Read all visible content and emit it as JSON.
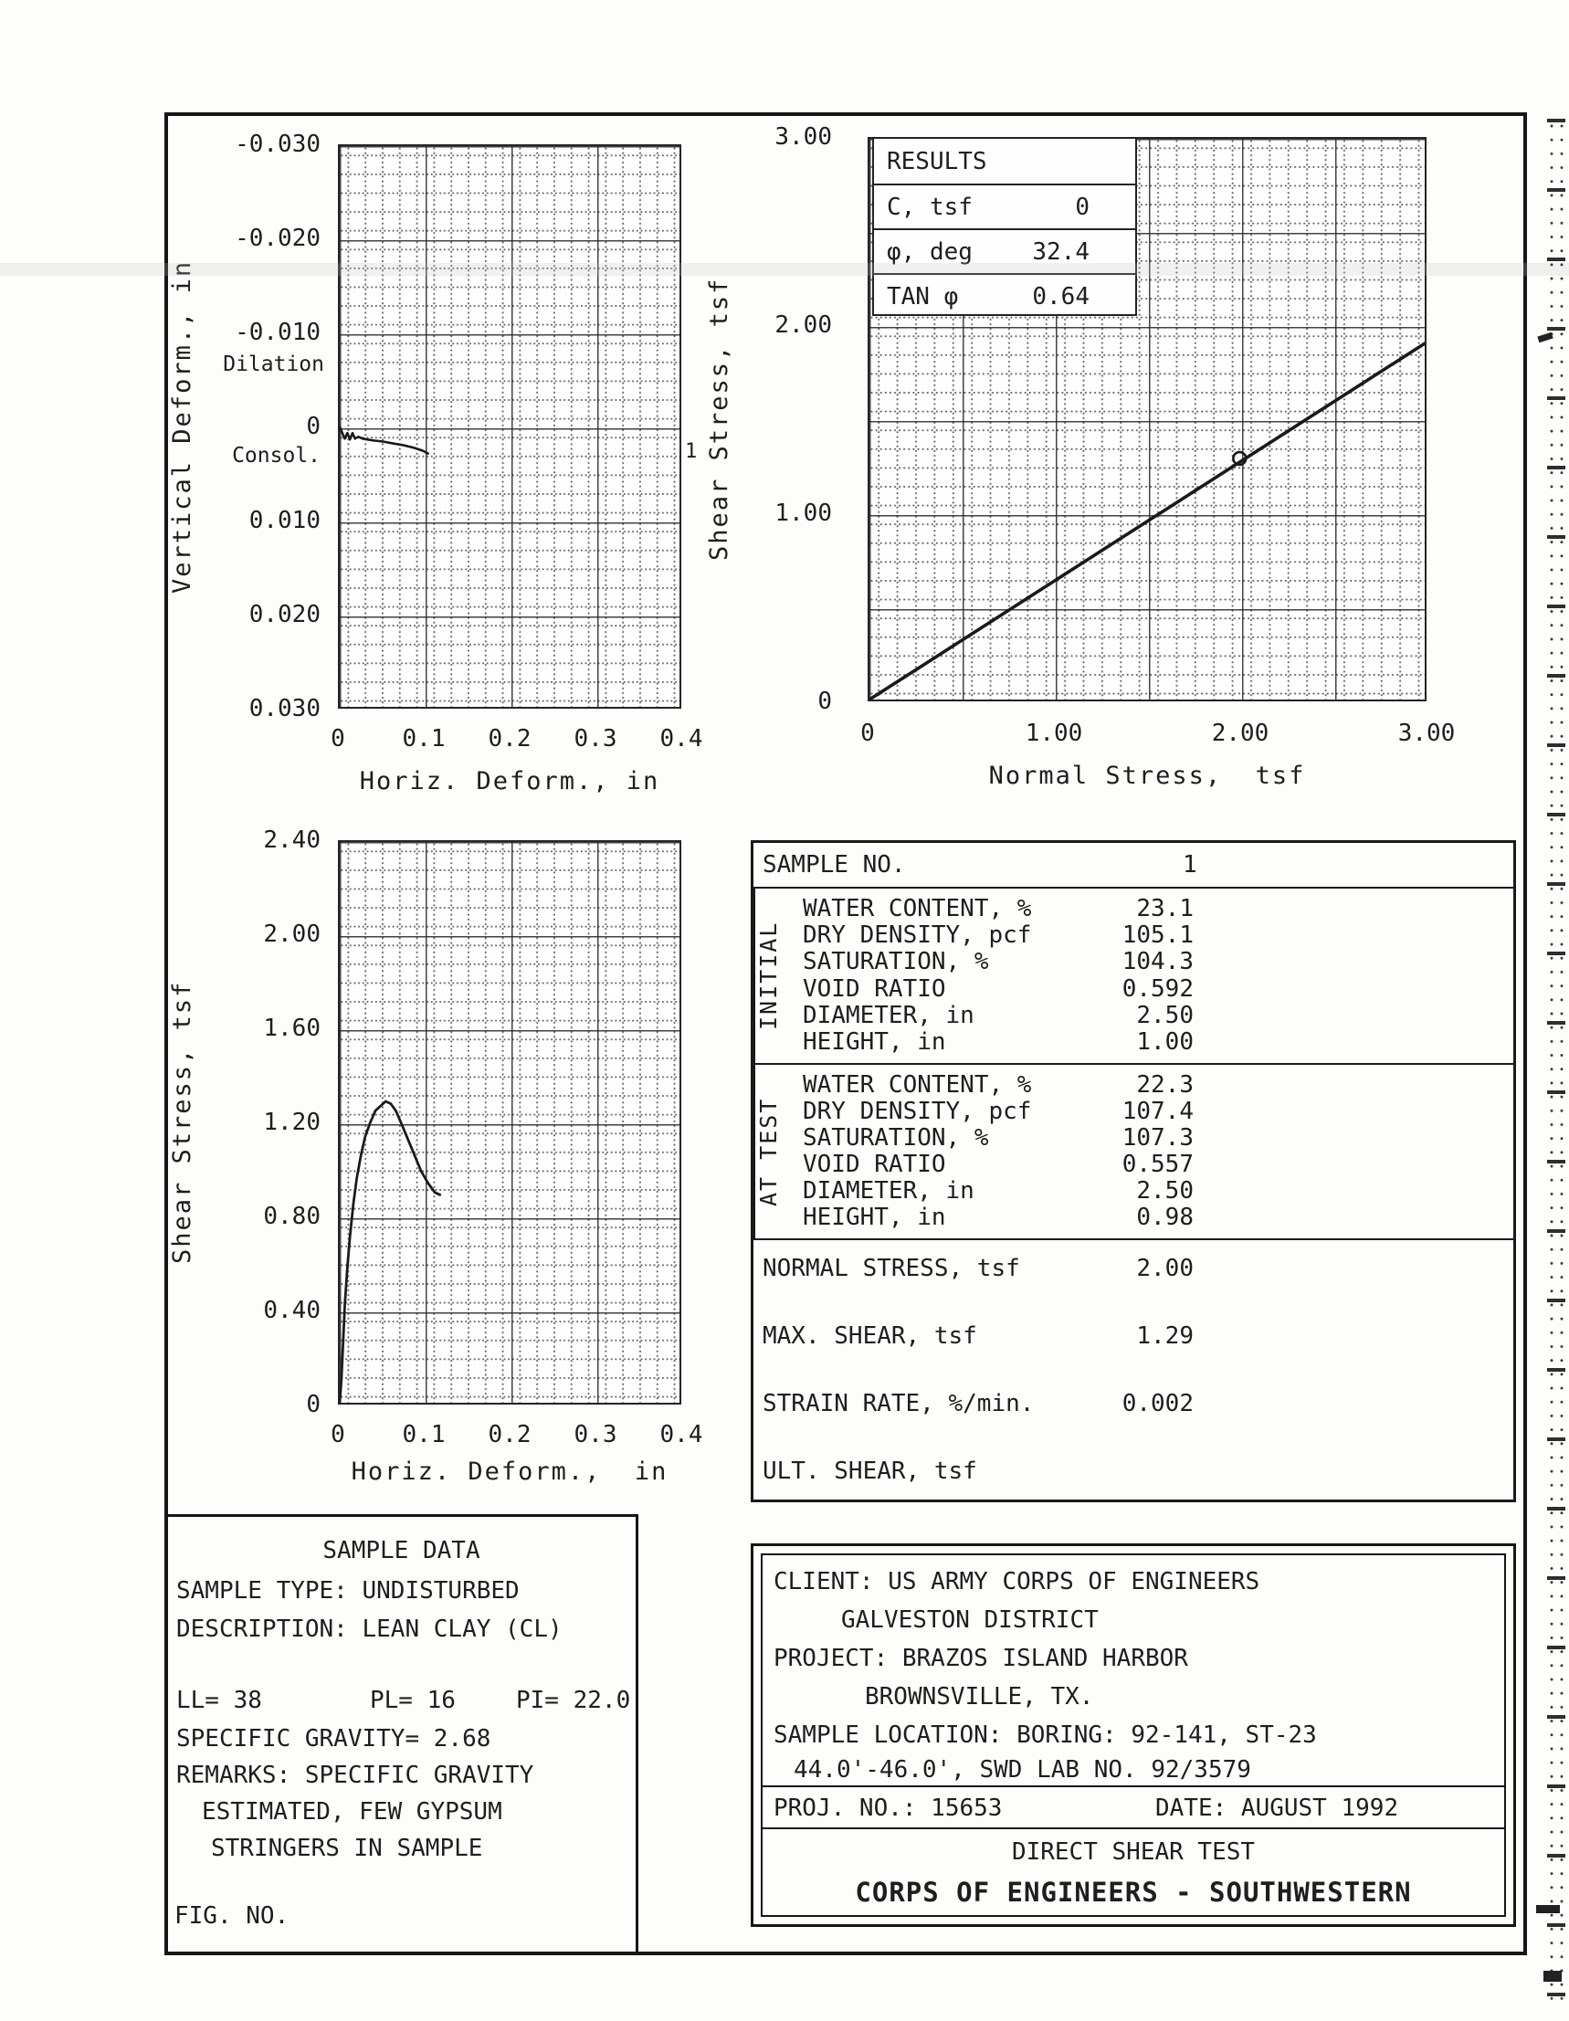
{
  "charts": {
    "consolidation": {
      "y_axis_title": "Vertical Deform., in",
      "x_axis_title": "Horiz. Deform., in",
      "y_ticks": [
        "-0.030",
        "-0.020",
        "-0.010",
        "0",
        "0.010",
        "0.020",
        "0.030"
      ],
      "x_ticks": [
        "0",
        "0.1",
        "0.2",
        "0.3",
        "0.4"
      ],
      "dilation_label": "Dilation",
      "consol_label": "Consol.",
      "sample_point_label": "1"
    },
    "envelope": {
      "y_axis_title": "Shear Stress, tsf",
      "x_axis_title": "Normal Stress,  tsf",
      "y_ticks": [
        "3.00",
        "2.00",
        "1.00",
        "0"
      ],
      "x_ticks": [
        "0",
        "1.00",
        "2.00",
        "3.00"
      ]
    },
    "stress_strain": {
      "y_axis_title": "Shear Stress, tsf",
      "x_axis_title": "Horiz. Deform.,  in",
      "y_ticks": [
        "2.40",
        "2.00",
        "1.60",
        "1.20",
        "0.80",
        "0.40",
        "0"
      ],
      "x_ticks": [
        "0",
        "0.1",
        "0.2",
        "0.3",
        "0.4"
      ]
    }
  },
  "results_box": {
    "title": "RESULTS",
    "rows": [
      {
        "label": "C, tsf",
        "value": "0"
      },
      {
        "label": "φ, deg",
        "value": "32.4"
      },
      {
        "label": "TAN φ",
        "value": "0.64"
      }
    ]
  },
  "chart_data": [
    {
      "id": "vertical-deformation",
      "type": "line",
      "title": "Vertical deformation vs horizontal deformation",
      "xlabel": "Horiz. Deform., in",
      "ylabel": "Vertical Deform., in",
      "xlim": [
        0,
        0.4
      ],
      "ylim": [
        -0.03,
        0.03
      ],
      "y_inverted": true,
      "grid": "dotted minor, solid major",
      "annotations": [
        "Dilation",
        "Consol.",
        "1"
      ],
      "series": [
        {
          "name": "sample-1-vertical-deformation",
          "width": 2.6,
          "points": [
            [
              0,
              0
            ],
            [
              0.003,
              0.0007
            ],
            [
              0.006,
              0.0013
            ],
            [
              0.009,
              0.0007
            ],
            [
              0.012,
              0.0014
            ],
            [
              0.015,
              0.0007
            ],
            [
              0.018,
              0.0013
            ],
            [
              0.022,
              0.0011
            ],
            [
              0.027,
              0.0013
            ],
            [
              0.033,
              0.0014
            ],
            [
              0.04,
              0.0015
            ],
            [
              0.05,
              0.0016
            ],
            [
              0.062,
              0.0018
            ],
            [
              0.075,
              0.002
            ],
            [
              0.088,
              0.0023
            ],
            [
              0.098,
              0.0026
            ],
            [
              0.104,
              0.0029
            ]
          ]
        }
      ]
    },
    {
      "id": "failure-envelope",
      "type": "line",
      "title": "Shear stress vs normal stress failure envelope",
      "xlabel": "Normal Stress, tsf",
      "ylabel": "Shear Stress, tsf",
      "xlim": [
        0,
        3.0
      ],
      "ylim": [
        0,
        3.0
      ],
      "results": {
        "C_tsf": 0,
        "phi_deg": 32.4,
        "tan_phi": 0.64
      },
      "series": [
        {
          "name": "failure-envelope-line",
          "width": 3.6,
          "points": [
            [
              0,
              0
            ],
            [
              3.0,
              1.905
            ]
          ]
        },
        {
          "name": "test-point-sample-1",
          "marker": "circle",
          "points": [
            [
              2.0,
              1.29
            ]
          ]
        }
      ]
    },
    {
      "id": "stress-displacement",
      "type": "line",
      "title": "Shear stress vs horizontal deformation",
      "xlabel": "Horiz. Deform., in",
      "ylabel": "Shear Stress, tsf",
      "xlim": [
        0,
        0.4
      ],
      "ylim": [
        0,
        2.4
      ],
      "max_shear_tsf": 1.29,
      "series": [
        {
          "name": "sample-1-shear-stress",
          "width": 2.8,
          "points": [
            [
              0,
              0
            ],
            [
              0.002,
              0.1
            ],
            [
              0.004,
              0.26
            ],
            [
              0.006,
              0.42
            ],
            [
              0.009,
              0.58
            ],
            [
              0.012,
              0.71
            ],
            [
              0.016,
              0.85
            ],
            [
              0.02,
              0.96
            ],
            [
              0.025,
              1.06
            ],
            [
              0.03,
              1.14
            ],
            [
              0.036,
              1.2
            ],
            [
              0.042,
              1.25
            ],
            [
              0.048,
              1.27
            ],
            [
              0.054,
              1.29
            ],
            [
              0.06,
              1.28
            ],
            [
              0.066,
              1.25
            ],
            [
              0.072,
              1.2
            ],
            [
              0.08,
              1.13
            ],
            [
              0.088,
              1.06
            ],
            [
              0.096,
              0.99
            ],
            [
              0.104,
              0.94
            ],
            [
              0.112,
              0.9
            ],
            [
              0.118,
              0.89
            ]
          ]
        }
      ]
    }
  ],
  "sample_table": {
    "sample_no_label": "SAMPLE NO.",
    "sample_no_value": "1",
    "initial_label": "INITIAL",
    "at_test_label": "AT TEST",
    "param_labels": [
      "WATER CONTENT, %",
      "DRY DENSITY, pcf",
      "SATURATION, %",
      "VOID RATIO",
      "DIAMETER, in",
      "HEIGHT, in"
    ],
    "initial_values": [
      "23.1",
      "105.1",
      "104.3",
      "0.592",
      "2.50",
      "1.00"
    ],
    "at_test_values": [
      "22.3",
      "107.4",
      "107.3",
      "0.557",
      "2.50",
      "0.98"
    ],
    "summary_rows": [
      {
        "label": "NORMAL STRESS, tsf",
        "value": "2.00"
      },
      {
        "label": "MAX. SHEAR, tsf",
        "value": "1.29"
      },
      {
        "label": "STRAIN RATE, %/min.",
        "value": "0.002"
      },
      {
        "label": "ULT. SHEAR, tsf",
        "value": ""
      }
    ]
  },
  "sample_data": {
    "title": "SAMPLE DATA",
    "sample_type": "SAMPLE TYPE: UNDISTURBED",
    "description": "DESCRIPTION: LEAN CLAY (CL)",
    "ll": "LL= 38",
    "pl": "PL= 16",
    "pi": "PI= 22.0",
    "specific_gravity": "SPECIFIC GRAVITY= 2.68",
    "remarks_line1": "REMARKS: SPECIFIC GRAVITY",
    "remarks_line2": "ESTIMATED, FEW GYPSUM",
    "remarks_line3": "STRINGERS IN SAMPLE",
    "fig_no": "FIG. NO."
  },
  "title_block": {
    "client_line1": "CLIENT: US ARMY CORPS OF ENGINEERS",
    "client_line2": "GALVESTON DISTRICT",
    "project_line1": "PROJECT: BRAZOS ISLAND HARBOR",
    "project_line2": "BROWNSVILLE, TX.",
    "location_line1": "SAMPLE LOCATION: BORING: 92-141, ST-23",
    "location_line2": "44.0'-46.0', SWD LAB NO. 92/3579",
    "proj_no": "PROJ. NO.: 15653",
    "date": "DATE: AUGUST 1992",
    "test_title": "DIRECT SHEAR TEST",
    "org": "CORPS OF ENGINEERS - SOUTHWESTERN"
  }
}
